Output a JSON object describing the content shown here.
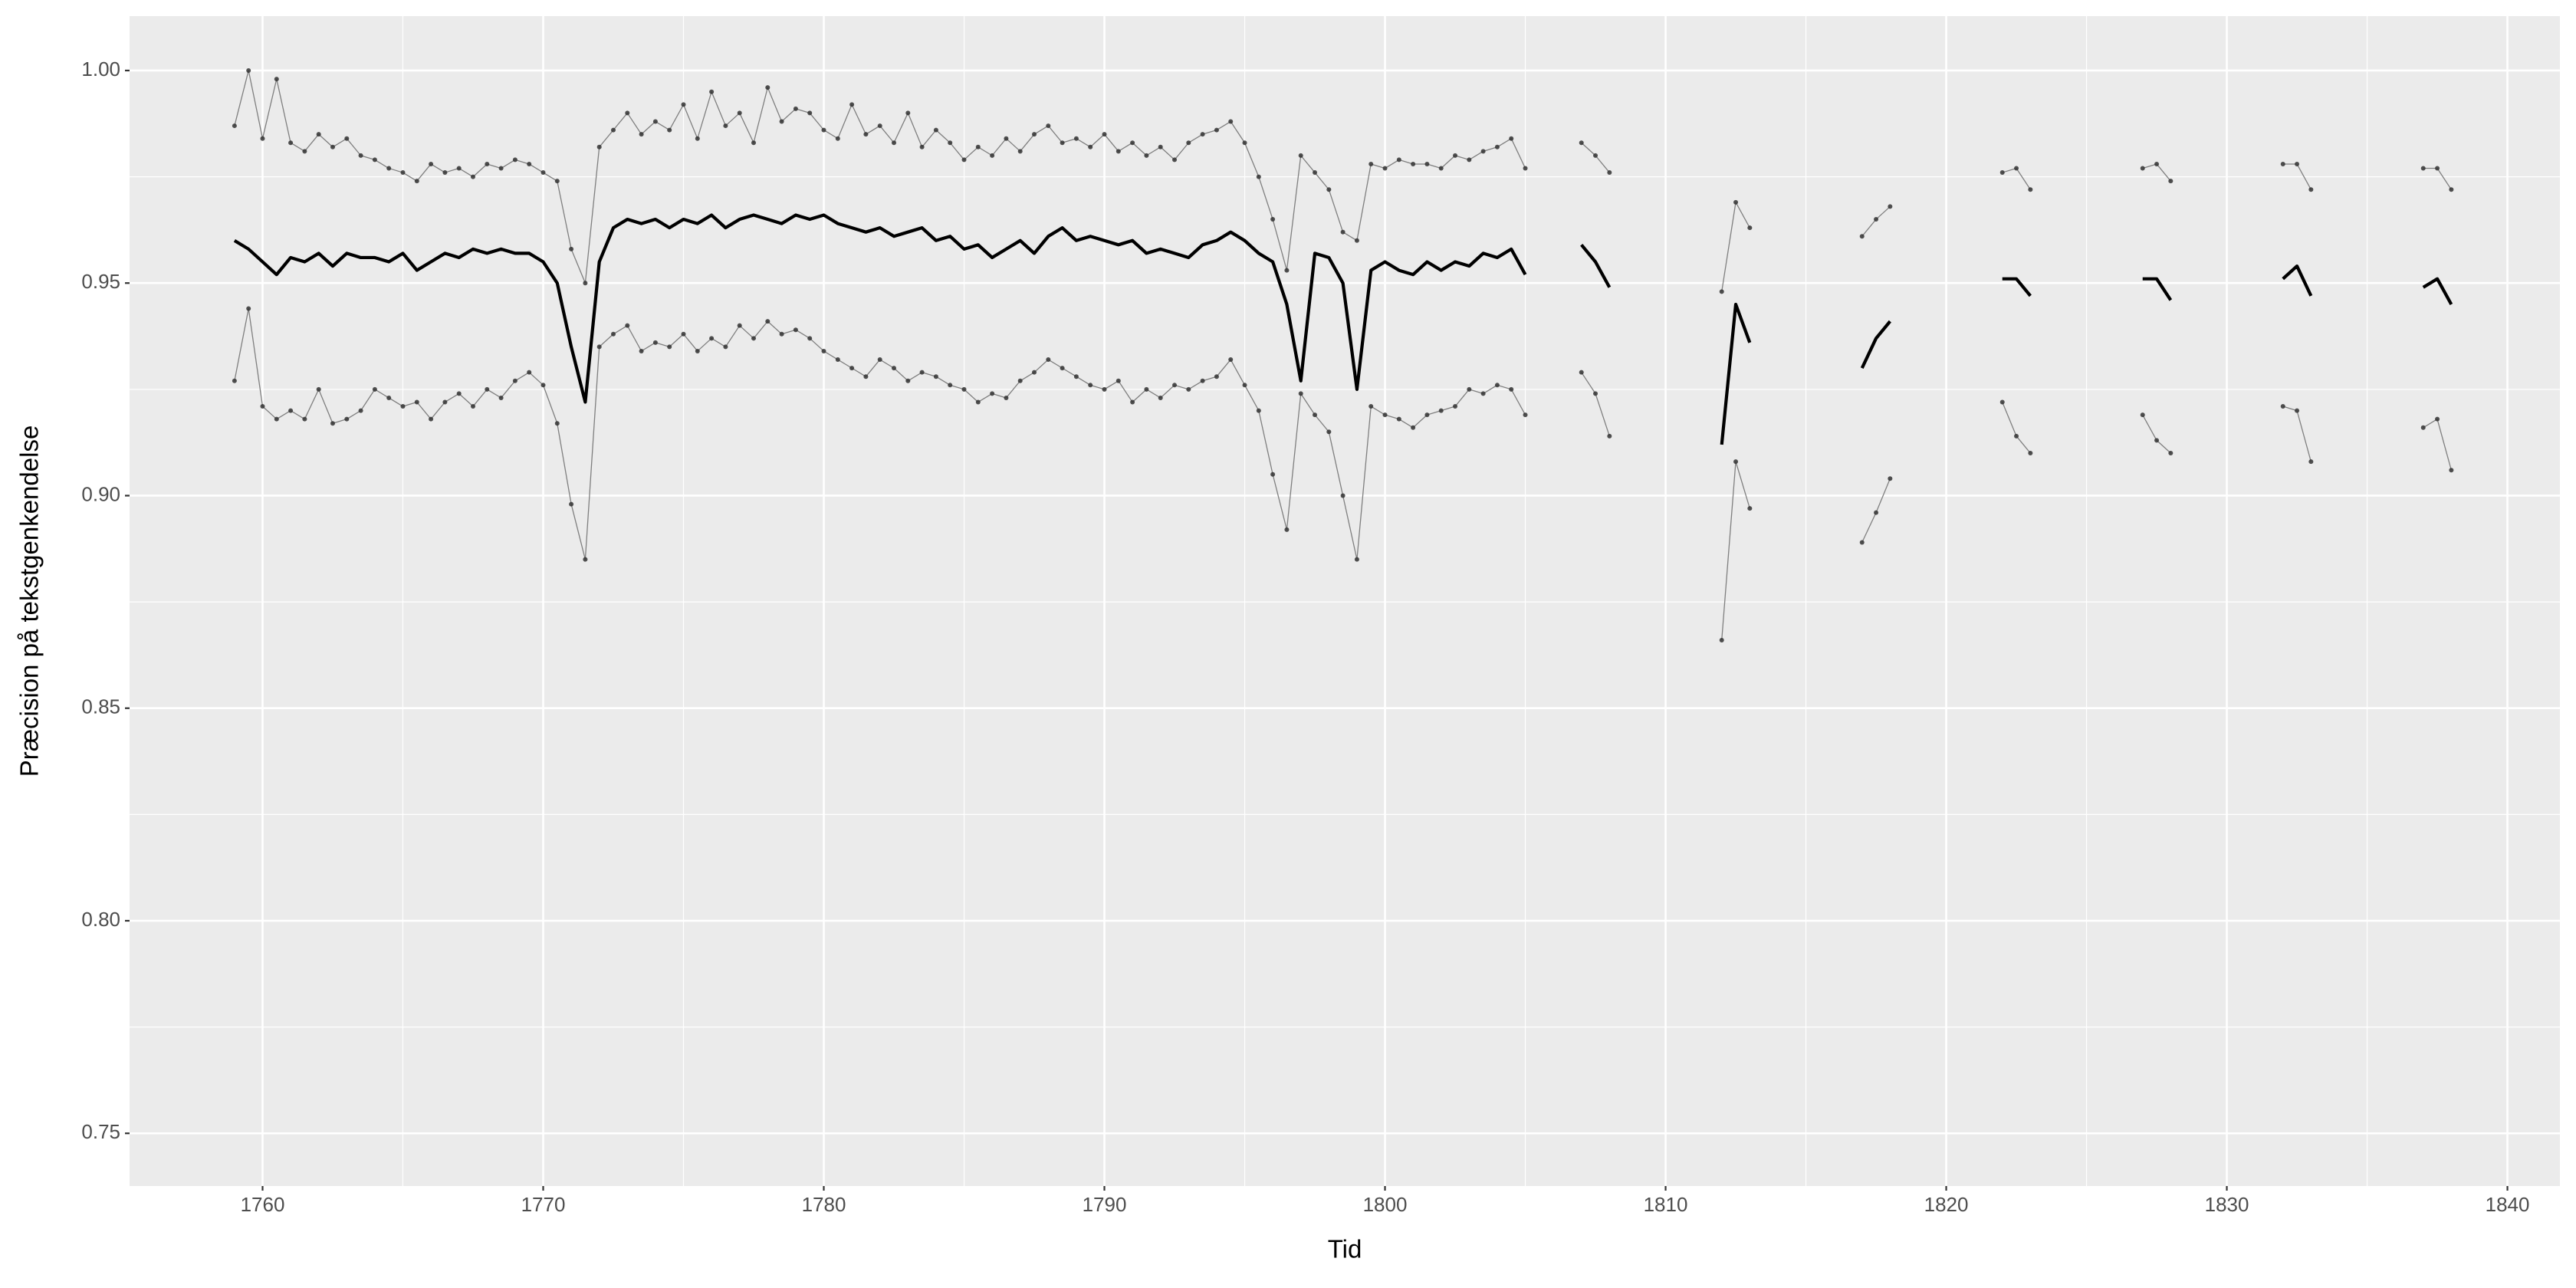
{
  "chart_data": {
    "type": "line",
    "x_label": "Tid",
    "y_label": "Præcision på tekstgenkendelse",
    "xlim": [
      1755.26,
      1841.87
    ],
    "ylim": [
      0.7376,
      1.0128
    ],
    "xticks": [
      1760,
      1770,
      1780,
      1790,
      1800,
      1810,
      1820,
      1830,
      1840
    ],
    "yticks": [
      {
        "value": 0.75,
        "label": "0.75"
      },
      {
        "value": 0.8,
        "label": "0.80"
      },
      {
        "value": 0.85,
        "label": "0.85"
      },
      {
        "value": 0.9,
        "label": "0.90"
      },
      {
        "value": 0.95,
        "label": "0.95"
      },
      {
        "value": 1,
        "label": "1.00"
      }
    ],
    "grid": true,
    "x": [
      1759,
      1759.5,
      1760,
      1760.5,
      1761,
      1761.5,
      1762,
      1762.5,
      1763,
      1763.5,
      1764,
      1764.5,
      1765,
      1765.5,
      1766,
      1766.5,
      1767,
      1767.5,
      1768,
      1768.5,
      1769,
      1769.5,
      1770,
      1770.5,
      1771,
      1771.5,
      1772,
      1772.5,
      1773,
      1773.5,
      1774,
      1774.5,
      1775,
      1775.5,
      1776,
      1776.5,
      1777,
      1777.5,
      1778,
      1778.5,
      1779,
      1779.5,
      1780,
      1780.5,
      1781,
      1781.5,
      1782,
      1782.5,
      1783,
      1783.5,
      1784,
      1784.5,
      1785,
      1785.5,
      1786,
      1786.5,
      1787,
      1787.5,
      1788,
      1788.5,
      1789,
      1789.5,
      1790,
      1790.5,
      1791,
      1791.5,
      1792,
      1792.5,
      1793,
      1793.5,
      1794,
      1794.5,
      1795,
      1795.5,
      1796,
      1796.5,
      1797,
      1797.5,
      1798,
      1798.5,
      1799,
      1799.5,
      1800,
      1800.5,
      1801,
      1801.5,
      1802,
      1802.5,
      1803,
      1803.5,
      1804,
      1804.5,
      1805,
      1806,
      1807,
      1807.5,
      1808,
      1810,
      1812,
      1812.5,
      1813,
      1815,
      1817,
      1817.5,
      1818,
      1820,
      1822,
      1822.5,
      1823,
      1825,
      1827,
      1827.5,
      1828,
      1830,
      1832,
      1832.5,
      1833,
      1835,
      1837,
      1837.5,
      1838
    ],
    "series": [
      {
        "color": "#7f7f7f",
        "markers": true,
        "values": [
          0.987,
          1.0,
          0.984,
          0.998,
          0.983,
          0.981,
          0.985,
          0.982,
          0.984,
          0.98,
          0.979,
          0.977,
          0.976,
          0.974,
          0.978,
          0.976,
          0.977,
          0.975,
          0.978,
          0.977,
          0.979,
          0.978,
          0.976,
          0.974,
          0.958,
          0.95,
          0.982,
          0.986,
          0.99,
          0.985,
          0.988,
          0.986,
          0.992,
          0.984,
          0.995,
          0.987,
          0.99,
          0.983,
          0.996,
          0.988,
          0.991,
          0.99,
          0.986,
          0.984,
          0.992,
          0.985,
          0.987,
          0.983,
          0.99,
          0.982,
          0.986,
          0.983,
          0.979,
          0.982,
          0.98,
          0.984,
          0.981,
          0.985,
          0.987,
          0.983,
          0.984,
          0.982,
          0.985,
          0.981,
          0.983,
          0.98,
          0.982,
          0.979,
          0.983,
          0.985,
          0.986,
          0.988,
          0.983,
          0.975,
          0.965,
          0.953,
          0.98,
          0.976,
          0.972,
          0.962,
          0.96,
          0.978,
          0.977,
          0.979,
          0.978,
          0.978,
          0.977,
          0.98,
          0.979,
          0.981,
          0.982,
          0.984,
          0.977,
          null,
          0.983,
          0.98,
          0.976,
          null,
          0.948,
          0.969,
          0.963,
          null,
          0.961,
          0.965,
          0.968,
          null,
          0.976,
          0.977,
          0.972,
          null,
          0.977,
          0.978,
          0.974,
          null,
          0.978,
          0.978,
          0.972,
          null,
          0.977,
          0.977,
          0.972
        ]
      },
      {
        "color": "#000000",
        "markers": false,
        "values": [
          0.96,
          0.958,
          0.955,
          0.952,
          0.956,
          0.955,
          0.957,
          0.954,
          0.957,
          0.956,
          0.956,
          0.955,
          0.957,
          0.953,
          0.955,
          0.957,
          0.956,
          0.958,
          0.957,
          0.958,
          0.957,
          0.957,
          0.955,
          0.95,
          0.935,
          0.922,
          0.955,
          0.963,
          0.965,
          0.964,
          0.965,
          0.963,
          0.965,
          0.964,
          0.966,
          0.963,
          0.965,
          0.966,
          0.965,
          0.964,
          0.966,
          0.965,
          0.966,
          0.964,
          0.963,
          0.962,
          0.963,
          0.961,
          0.962,
          0.963,
          0.96,
          0.961,
          0.958,
          0.959,
          0.956,
          0.958,
          0.96,
          0.957,
          0.961,
          0.963,
          0.96,
          0.961,
          0.96,
          0.959,
          0.96,
          0.957,
          0.958,
          0.957,
          0.956,
          0.959,
          0.96,
          0.962,
          0.96,
          0.957,
          0.955,
          0.945,
          0.927,
          0.957,
          0.956,
          0.95,
          0.925,
          0.953,
          0.955,
          0.953,
          0.952,
          0.955,
          0.953,
          0.955,
          0.954,
          0.957,
          0.956,
          0.958,
          0.952,
          null,
          0.959,
          0.955,
          0.949,
          null,
          0.912,
          0.945,
          0.936,
          null,
          0.93,
          0.937,
          0.941,
          null,
          0.951,
          0.951,
          0.947,
          null,
          0.951,
          0.951,
          0.946,
          null,
          0.951,
          0.954,
          0.947,
          null,
          0.949,
          0.951,
          0.945
        ]
      },
      {
        "color": "#7f7f7f",
        "markers": true,
        "values": [
          0.927,
          0.944,
          0.921,
          0.918,
          0.92,
          0.918,
          0.925,
          0.917,
          0.918,
          0.92,
          0.925,
          0.923,
          0.921,
          0.922,
          0.918,
          0.922,
          0.924,
          0.921,
          0.925,
          0.923,
          0.927,
          0.929,
          0.926,
          0.917,
          0.898,
          0.885,
          0.935,
          0.938,
          0.94,
          0.934,
          0.936,
          0.935,
          0.938,
          0.934,
          0.937,
          0.935,
          0.94,
          0.937,
          0.941,
          0.938,
          0.939,
          0.937,
          0.934,
          0.932,
          0.93,
          0.928,
          0.932,
          0.93,
          0.927,
          0.929,
          0.928,
          0.926,
          0.925,
          0.922,
          0.924,
          0.923,
          0.927,
          0.929,
          0.932,
          0.93,
          0.928,
          0.926,
          0.925,
          0.927,
          0.922,
          0.925,
          0.923,
          0.926,
          0.925,
          0.927,
          0.928,
          0.932,
          0.926,
          0.92,
          0.905,
          0.892,
          0.924,
          0.919,
          0.915,
          0.9,
          0.885,
          0.921,
          0.919,
          0.918,
          0.916,
          0.919,
          0.92,
          0.921,
          0.925,
          0.924,
          0.926,
          0.925,
          0.919,
          null,
          0.929,
          0.924,
          0.914,
          null,
          0.866,
          0.908,
          0.897,
          null,
          0.889,
          0.896,
          0.904,
          null,
          0.922,
          0.914,
          0.91,
          null,
          0.919,
          0.913,
          0.91,
          null,
          0.921,
          0.92,
          0.908,
          null,
          0.916,
          0.918,
          0.906
        ]
      }
    ]
  }
}
